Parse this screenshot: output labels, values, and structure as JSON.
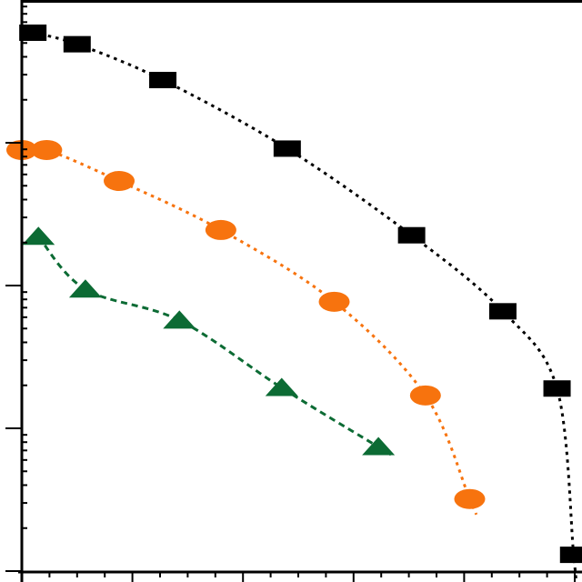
{
  "chart_data": {
    "type": "scatter",
    "title": "",
    "xlabel": "",
    "ylabel": "",
    "y_scale": "log",
    "ylim": [
      0.0001,
      1
    ],
    "xlim": [
      0,
      1
    ],
    "grid": false,
    "legend": "none",
    "series": [
      {
        "marker": "square",
        "color": "#000000",
        "fit_line": "dotted",
        "x": [
          0.02,
          0.1,
          0.255,
          0.48,
          0.705,
          0.87,
          0.968,
          0.998
        ],
        "y": [
          0.59,
          0.49,
          0.275,
          0.091,
          0.0225,
          0.0066,
          0.0019,
          0.00013
        ]
      },
      {
        "marker": "circle",
        "color": "#f7730e",
        "fit_line": "dotted",
        "x": [
          0.0,
          0.045,
          0.176,
          0.36,
          0.565,
          0.73,
          0.81
        ],
        "y": [
          0.089,
          0.089,
          0.054,
          0.0245,
          0.0077,
          0.0017,
          0.00032
        ]
      },
      {
        "marker": "triangle",
        "color": "#0c6b34",
        "fit_line": "dashed",
        "x": [
          0.03,
          0.115,
          0.285,
          0.47,
          0.645
        ],
        "y": [
          0.022,
          0.0094,
          0.0057,
          0.00192,
          0.00074
        ]
      }
    ]
  }
}
